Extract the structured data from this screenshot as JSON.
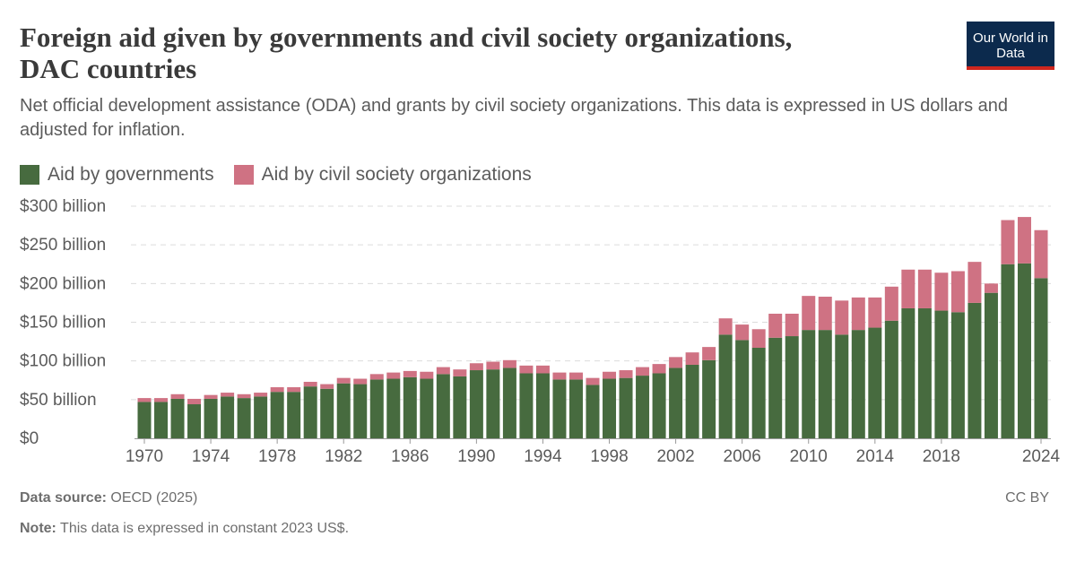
{
  "header": {
    "title": "Foreign aid given by governments and civil society organizations, DAC countries",
    "subtitle": "Net official development assistance (ODA) and grants by civil society organizations. This data is expressed in US dollars and adjusted for inflation.",
    "logo_text": "Our World in Data"
  },
  "footer": {
    "source_label": "Data source:",
    "source_value": "OECD (2025)",
    "note_label": "Note:",
    "note_value": "This data is expressed in constant 2023 US$.",
    "license": "CC BY"
  },
  "chart_data": {
    "type": "bar",
    "stacked": true,
    "grid": true,
    "legend_placement": "top-left",
    "ylim": [
      0,
      300
    ],
    "ytick_labels": [
      "$0",
      "$50 billion",
      "$100 billion",
      "$150 billion",
      "$200 billion",
      "$250 billion",
      "$300 billion"
    ],
    "ytick_values": [
      0,
      50,
      100,
      150,
      200,
      250,
      300
    ],
    "xtick_labels": [
      "1970",
      "1974",
      "1978",
      "1982",
      "1986",
      "1990",
      "1994",
      "1998",
      "2002",
      "2006",
      "2010",
      "2014",
      "2018",
      "2024"
    ],
    "categories": [
      1970,
      1971,
      1972,
      1973,
      1974,
      1975,
      1976,
      1977,
      1978,
      1979,
      1980,
      1981,
      1982,
      1983,
      1984,
      1985,
      1986,
      1987,
      1988,
      1989,
      1990,
      1991,
      1992,
      1993,
      1994,
      1995,
      1996,
      1997,
      1998,
      1999,
      2000,
      2001,
      2002,
      2003,
      2004,
      2005,
      2006,
      2007,
      2008,
      2009,
      2010,
      2011,
      2012,
      2013,
      2014,
      2015,
      2016,
      2017,
      2018,
      2019,
      2020,
      2021,
      2022,
      2023,
      2024
    ],
    "series": [
      {
        "name": "Aid by governments",
        "color": "#476b3f",
        "values": [
          47,
          47,
          51,
          44,
          51,
          54,
          52,
          54,
          60,
          60,
          67,
          64,
          71,
          70,
          76,
          77,
          79,
          77,
          83,
          80,
          88,
          89,
          91,
          84,
          84,
          76,
          76,
          69,
          77,
          78,
          81,
          84,
          91,
          95,
          101,
          134,
          127,
          117,
          130,
          132,
          140,
          140,
          134,
          140,
          143,
          152,
          168,
          168,
          165,
          163,
          175,
          188,
          225,
          226,
          207
        ]
      },
      {
        "name": "Aid by civil society organizations",
        "color": "#cf7283",
        "values": [
          5,
          5,
          6,
          7,
          5,
          5,
          5,
          5,
          6,
          6,
          6,
          6,
          7,
          7,
          7,
          8,
          8,
          9,
          9,
          9,
          9,
          10,
          10,
          10,
          10,
          9,
          9,
          9,
          9,
          10,
          11,
          12,
          14,
          16,
          17,
          21,
          20,
          24,
          31,
          29,
          44,
          43,
          44,
          42,
          39,
          44,
          50,
          50,
          49,
          53,
          53,
          12,
          57,
          60,
          62
        ]
      }
    ]
  }
}
